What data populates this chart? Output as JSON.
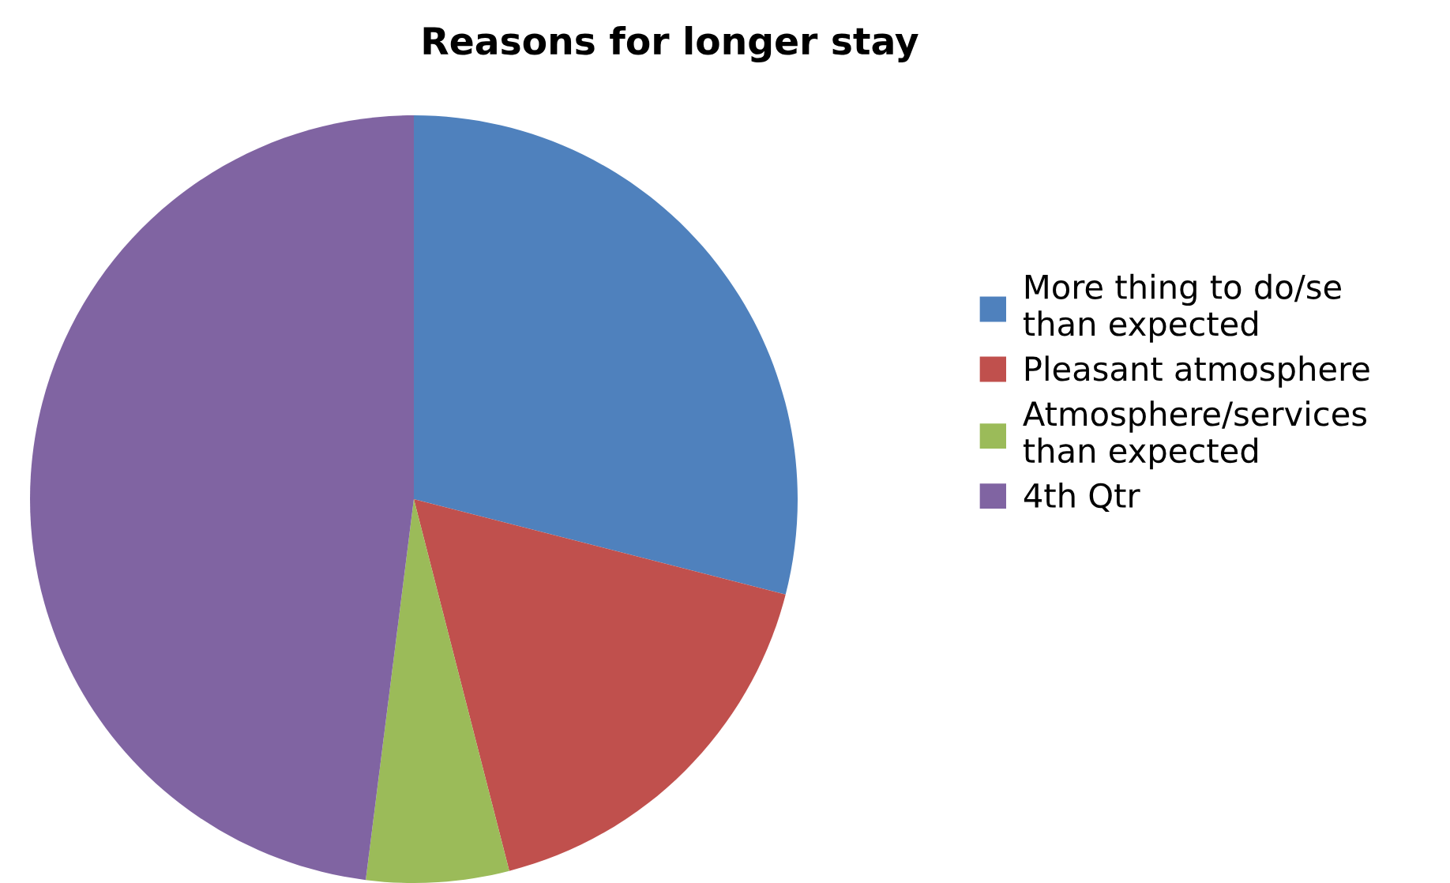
{
  "chart_data": {
    "type": "pie",
    "title": "Reasons for longer stay",
    "categories": [
      "More thing to do/se\nthan expected",
      "Pleasant atmosphere",
      "Atmosphere/services\nthan expected",
      "4th Qtr"
    ],
    "values": [
      29,
      17,
      6,
      48
    ],
    "colors": [
      "#4f81bd",
      "#c0504d",
      "#9bbb59",
      "#8064a2"
    ],
    "legend": "right"
  }
}
